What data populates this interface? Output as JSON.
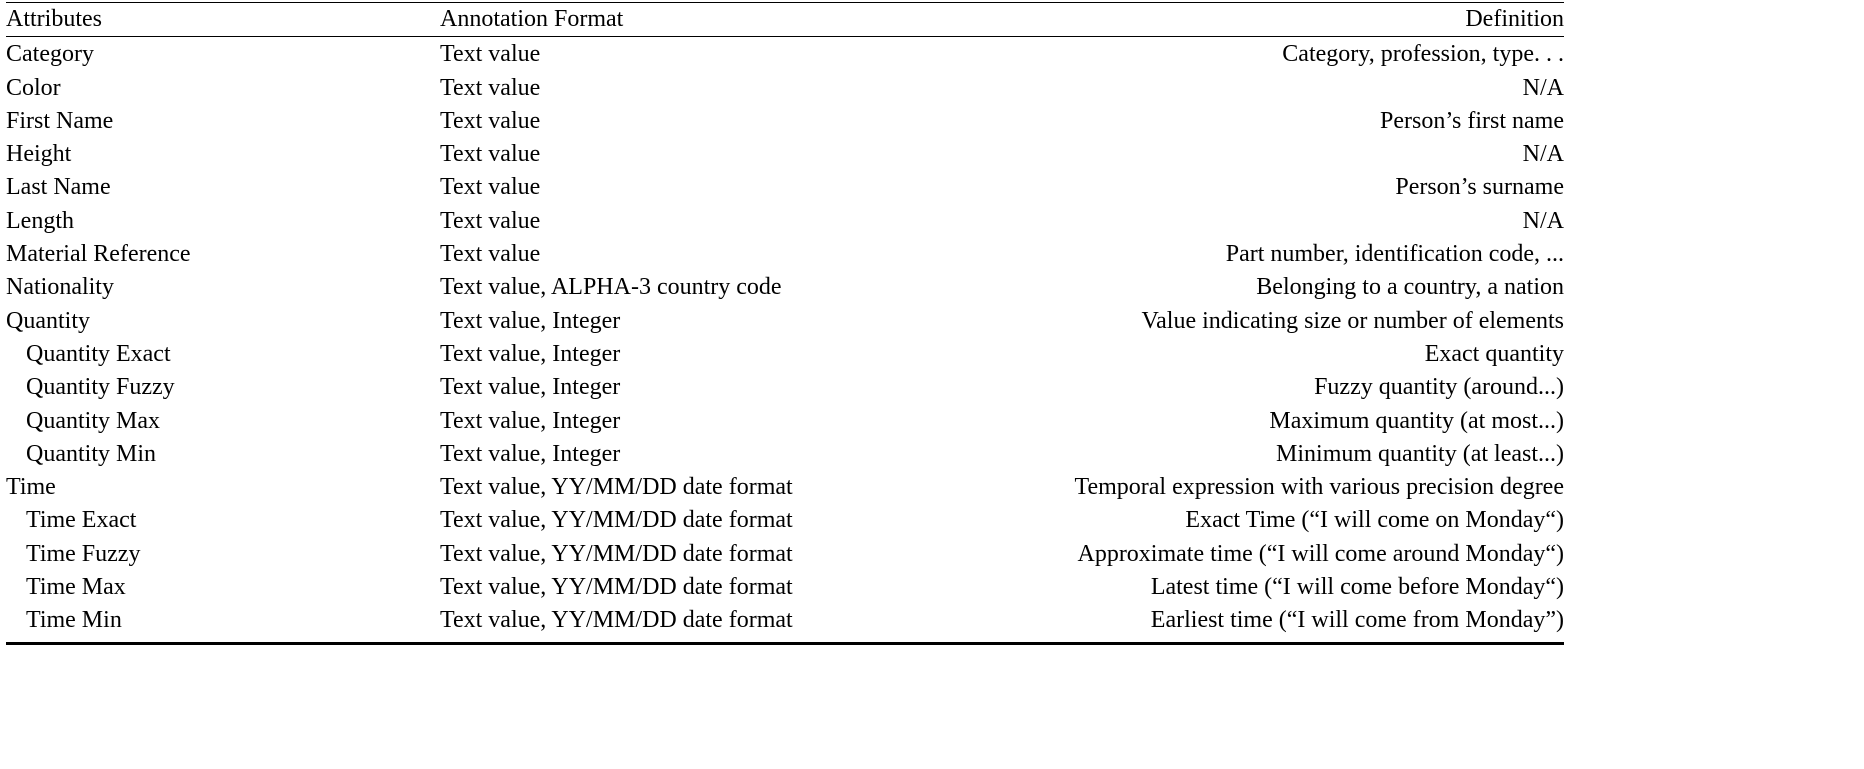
{
  "table": {
    "headers": {
      "attributes": "Attributes",
      "format": "Annotation Format",
      "definition": "Definition"
    },
    "rows": [
      {
        "attribute": "Category",
        "format": "Text value",
        "definition": "Category, profession, type. . .",
        "indent": false
      },
      {
        "attribute": "Color",
        "format": "Text value",
        "definition": "N/A",
        "indent": false
      },
      {
        "attribute": "First Name",
        "format": "Text value",
        "definition": "Person’s first name",
        "indent": false
      },
      {
        "attribute": "Height",
        "format": "Text value",
        "definition": "N/A",
        "indent": false
      },
      {
        "attribute": "Last Name",
        "format": "Text value",
        "definition": "Person’s surname",
        "indent": false
      },
      {
        "attribute": "Length",
        "format": "Text value",
        "definition": "N/A",
        "indent": false
      },
      {
        "attribute": "Material Reference",
        "format": "Text value",
        "definition": "Part number, identification code, ...",
        "indent": false
      },
      {
        "attribute": "Nationality",
        "format": "Text value, ALPHA-3 country code",
        "definition": "Belonging to a country, a nation",
        "indent": false
      },
      {
        "attribute": "Quantity",
        "format": "Text value, Integer",
        "definition": "Value indicating size or number of elements",
        "indent": false
      },
      {
        "attribute": "Quantity Exact",
        "format": "Text value, Integer",
        "definition": "Exact quantity",
        "indent": true
      },
      {
        "attribute": "Quantity Fuzzy",
        "format": "Text value, Integer",
        "definition": "Fuzzy quantity (around...)",
        "indent": true
      },
      {
        "attribute": "Quantity Max",
        "format": "Text value, Integer",
        "definition": "Maximum quantity (at most...)",
        "indent": true
      },
      {
        "attribute": "Quantity Min",
        "format": "Text value, Integer",
        "definition": "Minimum quantity (at least...)",
        "indent": true
      },
      {
        "attribute": "Time",
        "format": "Text value, YY/MM/DD date format",
        "definition": "Temporal expression with various precision degree",
        "indent": false
      },
      {
        "attribute": "Time Exact",
        "format": "Text value, YY/MM/DD date format",
        "definition": "Exact Time (“I will come on Monday“)",
        "indent": true
      },
      {
        "attribute": "Time Fuzzy",
        "format": "Text value, YY/MM/DD date format",
        "definition": "Approximate time (“I will come around Monday“)",
        "indent": true
      },
      {
        "attribute": "Time Max",
        "format": "Text value, YY/MM/DD date format",
        "definition": "Latest time (“I will come before Monday“)",
        "indent": true
      },
      {
        "attribute": "Time Min",
        "format": "Text value, YY/MM/DD date format",
        "definition": "Earliest time (“I will come from Monday”)",
        "indent": true
      }
    ]
  }
}
